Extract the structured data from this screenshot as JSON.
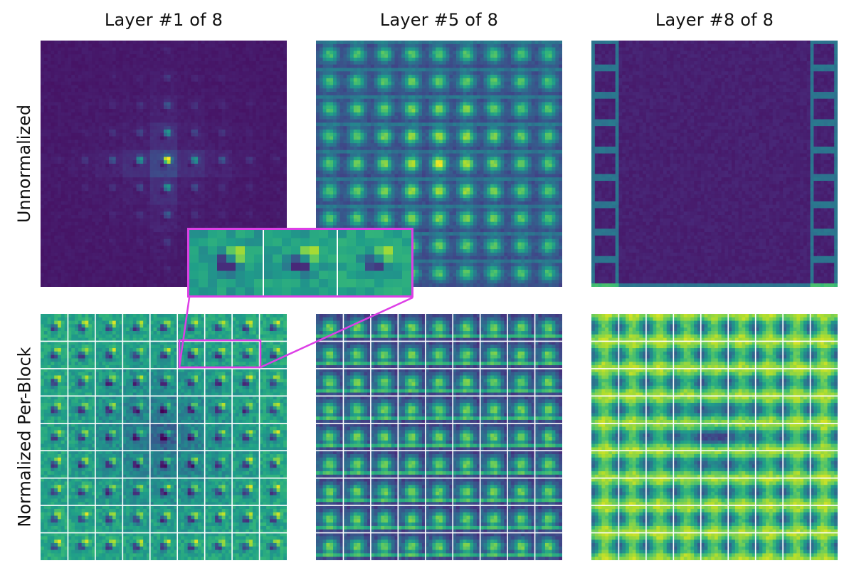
{
  "figure": {
    "columns": [
      {
        "title": "Layer #1 of 8",
        "variant": "layer1"
      },
      {
        "title": "Layer #5 of 8",
        "variant": "layer5"
      },
      {
        "title": "Layer #8 of 8",
        "variant": "layer8"
      }
    ],
    "rows": [
      {
        "label": "Unnormalized",
        "mode": "unnormalized"
      },
      {
        "label": "Normalized Per-Block",
        "mode": "normalized"
      }
    ],
    "grid_blocks": 9,
    "colormap": "viridis",
    "colors": {
      "highlight": "#dd3fe6",
      "block_gridline": "#ffffff",
      "viridis_low": "#440154",
      "viridis_mid": "#21918c",
      "viridis_high": "#fde725"
    },
    "inset": {
      "source_panel": "layer1-normalized",
      "zoomed_blocks": 3
    }
  }
}
